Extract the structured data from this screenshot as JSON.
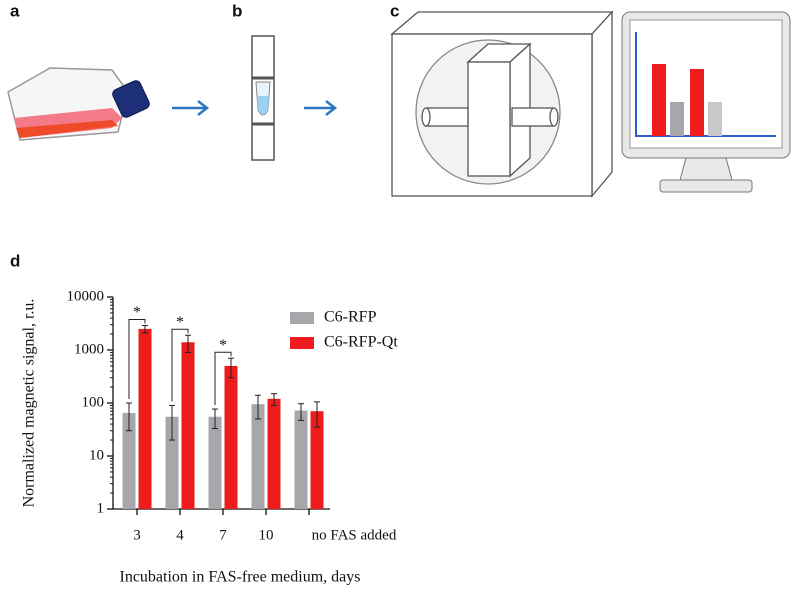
{
  "panels": {
    "a": "a",
    "b": "b",
    "c": "c",
    "d": "d"
  },
  "chart_data": {
    "type": "bar",
    "log_scale": true,
    "y_label": "Normalized magnetic signal, r.u.",
    "x_label": "Incubation in FAS-free medium, days",
    "categories": [
      "3",
      "4",
      "7",
      "10",
      "no FAS added"
    ],
    "series": [
      {
        "name": "C6-RFP",
        "color": "#a7a6ab",
        "values": [
          65,
          55,
          55,
          95,
          72
        ],
        "errors": [
          35,
          35,
          22,
          45,
          25
        ]
      },
      {
        "name": "C6-RFP-Qt",
        "color": "#ee1c1c",
        "values": [
          2500,
          1400,
          500,
          120,
          70
        ],
        "errors": [
          400,
          500,
          200,
          30,
          35
        ]
      }
    ],
    "significance": [
      "*",
      "*",
      "*",
      null,
      null
    ],
    "ylim": [
      1,
      10000
    ],
    "yticks": [
      1,
      10,
      100,
      1000,
      10000
    ],
    "legend": "upper right"
  }
}
